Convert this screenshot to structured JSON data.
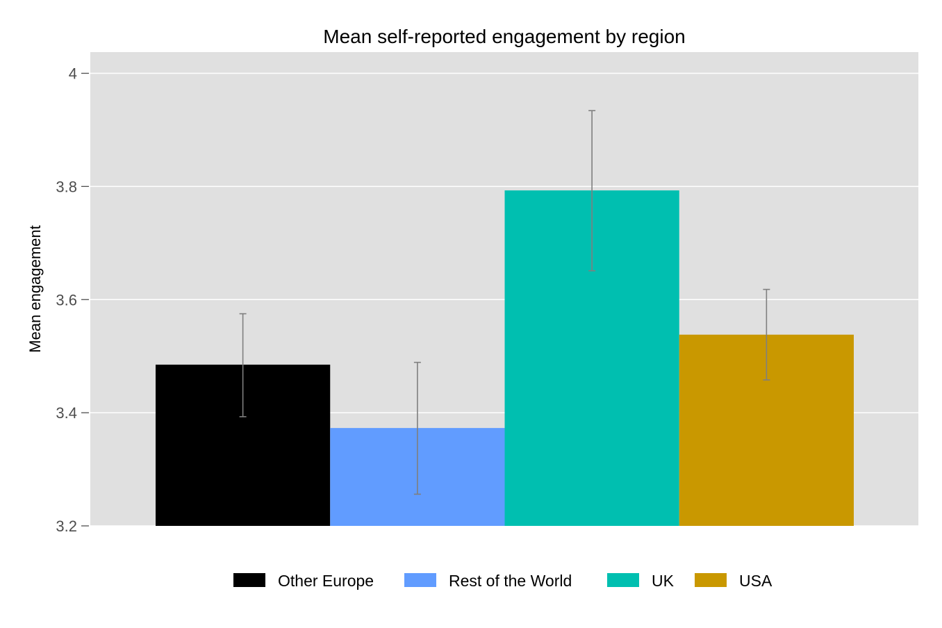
{
  "chart_data": {
    "type": "bar",
    "title": "Mean self-reported engagement by region",
    "xlabel": "",
    "ylabel": "Mean engagement",
    "ylim": [
      3.2,
      4.0
    ],
    "yticks": [
      3.2,
      3.4,
      3.6,
      3.8,
      4.0
    ],
    "ytick_labels": [
      "3.2",
      "3.4",
      "3.6",
      "3.8",
      "4"
    ],
    "grid": true,
    "legend_position": "bottom",
    "series": [
      {
        "name": "Other Europe",
        "value": 3.485,
        "error_low": 3.393,
        "error_high": 3.575,
        "color": "#000000"
      },
      {
        "name": "Rest of the World",
        "value": 3.373,
        "error_low": 3.256,
        "error_high": 3.489,
        "color": "#619CFF"
      },
      {
        "name": "UK",
        "value": 3.793,
        "error_low": 3.651,
        "error_high": 3.934,
        "color": "#00BFB0"
      },
      {
        "name": "USA",
        "value": 3.538,
        "error_low": 3.458,
        "error_high": 3.618,
        "color": "#C99800"
      }
    ],
    "panel_background": "#E0E0E0",
    "gridline_color": "#FFFFFF",
    "errorbar_color": "#7F7F7F"
  }
}
